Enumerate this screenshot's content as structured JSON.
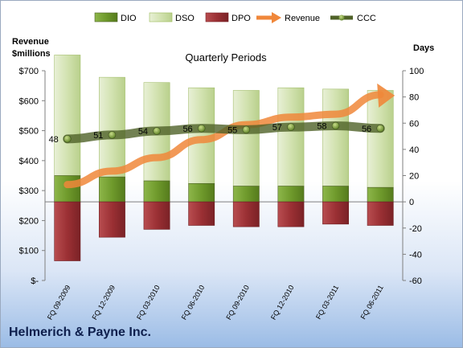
{
  "company": "Helmerich & Payne Inc.",
  "chart_data": {
    "type": "bar",
    "subtitle": "Quarterly Periods",
    "left_axis": {
      "title_lines": [
        "Revenue",
        "$millions"
      ],
      "ylim": [
        0,
        700
      ],
      "ticks": [
        0,
        100,
        200,
        300,
        400,
        500,
        600,
        700
      ],
      "tick_labels": [
        "$-",
        "$100",
        "$200",
        "$300",
        "$400",
        "$500",
        "$600",
        "$700"
      ]
    },
    "right_axis": {
      "title": "Days",
      "ylim": [
        -60,
        100
      ],
      "ticks": [
        -60,
        -40,
        -20,
        0,
        20,
        40,
        60,
        80,
        100
      ],
      "tick_labels": [
        "-60",
        "-40",
        "-20",
        "0",
        "20",
        "40",
        "60",
        "80",
        "100"
      ]
    },
    "categories": [
      "FQ 09-2009",
      "FQ 12-2009",
      "FQ 03-2010",
      "FQ 06-2010",
      "FQ 09-2010",
      "FQ 12-2010",
      "FQ 03-2011",
      "FQ 06-2011"
    ],
    "series": [
      {
        "name": "DIO",
        "axis": "days",
        "color": "#77a032",
        "values": [
          20,
          19,
          16,
          14,
          12,
          12,
          12,
          11
        ]
      },
      {
        "name": "DSO",
        "axis": "days",
        "color": "#d7e4bd",
        "values": [
          92,
          76,
          75,
          73,
          73,
          75,
          74,
          74
        ]
      },
      {
        "name": "DPO",
        "axis": "days",
        "color": "#a0353a",
        "values": [
          -45,
          -27,
          -21,
          -18,
          -19,
          -19,
          -17,
          -18
        ]
      },
      {
        "name": "Revenue",
        "axis": "revenue",
        "color": "#f0873a",
        "values": [
          320,
          365,
          410,
          470,
          520,
          545,
          555,
          620
        ]
      },
      {
        "name": "CCC",
        "axis": "days",
        "color": "#4f6228",
        "values": [
          48,
          51,
          54,
          56,
          55,
          57,
          58,
          56
        ]
      }
    ],
    "data_labels": {
      "series": "CCC",
      "labels": [
        "48",
        "51",
        "54",
        "56",
        "55",
        "57",
        "58",
        "56"
      ]
    },
    "legend_position": "top"
  }
}
